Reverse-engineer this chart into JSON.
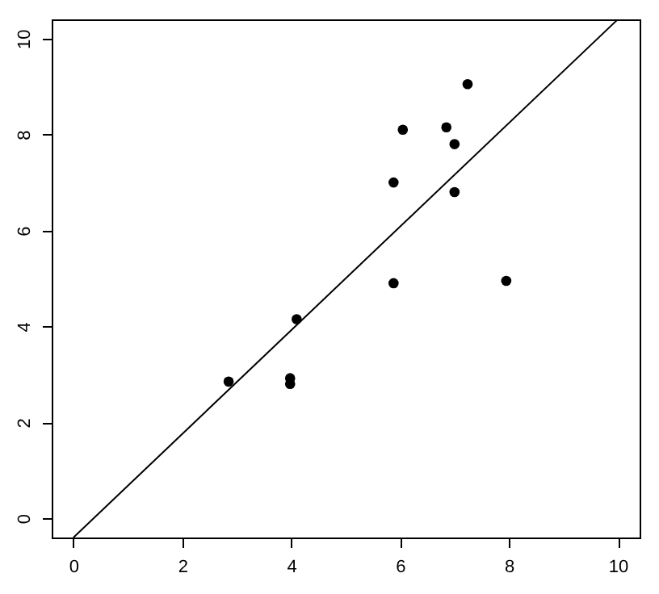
{
  "chart_data": {
    "type": "scatter",
    "x": [
      2.85,
      4.1,
      3.98,
      3.98,
      5.88,
      6.05,
      5.88,
      6.85,
      7.0,
      7.24,
      7.0,
      7.95
    ],
    "series": [
      {
        "color": "#000000",
        "marker": "circle",
        "values": [
          2.85,
          4.15,
          2.92,
          2.8,
          7.0,
          8.1,
          4.9,
          8.15,
          7.8,
          9.05,
          6.8,
          4.95
        ]
      },
      {
        "type": "line",
        "marker": "none",
        "color": "#000000",
        "x": [
          0,
          10
        ],
        "values": [
          -0.4,
          10.4
        ]
      }
    ],
    "xlim": [
      -0.4,
      10.4
    ],
    "ylim": [
      -0.4,
      10.4
    ],
    "xticks": [
      0,
      2,
      4,
      6,
      8,
      10
    ],
    "yticks": [
      0,
      2,
      4,
      6,
      8,
      10
    ],
    "grid": false,
    "line_style": "solid"
  }
}
